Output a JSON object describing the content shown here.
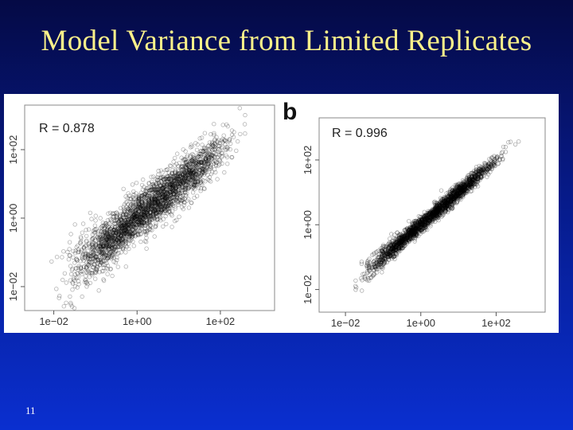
{
  "slide": {
    "title": "Model Variance from Limited Replicates",
    "page_number": "11"
  },
  "colors": {
    "background_top": "#050a45",
    "background_bottom": "#0a2fd0",
    "title": "#fbf18a",
    "points": "#000000"
  },
  "chart_data": [
    {
      "type": "scatter",
      "panel_label": "",
      "annotation": "R = 0.878",
      "r_value": 0.878,
      "log_scale": true,
      "xlim": [
        0.002,
        2000
      ],
      "ylim": [
        0.002,
        2000
      ],
      "x_ticks": [
        {
          "value": 0.01,
          "label": "1e−02"
        },
        {
          "value": 1,
          "label": "1e+00"
        },
        {
          "value": 100,
          "label": "1e+02"
        }
      ],
      "y_ticks": [
        {
          "value": 0.01,
          "label": "1e−02"
        },
        {
          "value": 1,
          "label": "1e+00"
        },
        {
          "value": 100,
          "label": "1e+02"
        }
      ],
      "trend": {
        "x_range": [
          0.004,
          1000
        ],
        "slope": 1.0,
        "intercept": 0.0,
        "spread_log10": 0.33
      },
      "grid": false
    },
    {
      "type": "scatter",
      "panel_label": "b",
      "annotation": "R = 0.996",
      "r_value": 0.996,
      "log_scale": true,
      "xlim": [
        0.002,
        2000
      ],
      "ylim": [
        0.002,
        2000
      ],
      "x_ticks": [
        {
          "value": 0.01,
          "label": "1e−02"
        },
        {
          "value": 1,
          "label": "1e+00"
        },
        {
          "value": 100,
          "label": "1e+02"
        }
      ],
      "y_ticks": [
        {
          "value": 0.01,
          "label": "1e−02"
        },
        {
          "value": 1,
          "label": "1e+00"
        },
        {
          "value": 100,
          "label": "1e+02"
        }
      ],
      "trend": {
        "x_range": [
          0.006,
          700
        ],
        "slope": 1.0,
        "intercept": 0.0,
        "spread_log10": 0.12
      },
      "grid": false
    }
  ]
}
